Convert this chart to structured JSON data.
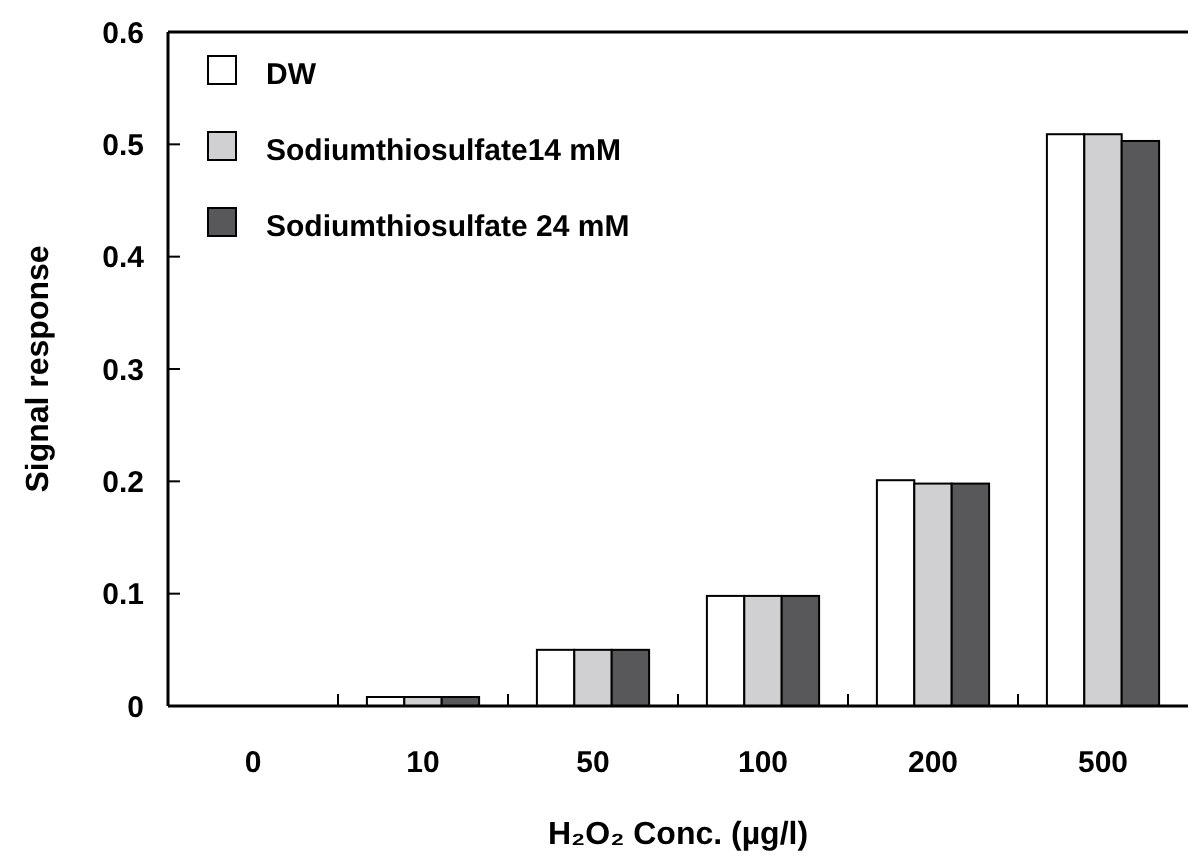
{
  "chart_data": {
    "type": "bar",
    "xlabel": "H₂O₂ Conc. (µg/l)",
    "ylabel": "Signal response",
    "categories": [
      "0",
      "10",
      "50",
      "100",
      "200",
      "500"
    ],
    "series": [
      {
        "name": "DW",
        "color": "#ffffff",
        "values": [
          0,
          0.008,
          0.05,
          0.098,
          0.201,
          0.509
        ]
      },
      {
        "name": "Sodiumthiosulfate14 mM",
        "color": "#d0d0d2",
        "values": [
          0,
          0.008,
          0.05,
          0.098,
          0.198,
          0.509
        ]
      },
      {
        "name": "Sodiumthiosulfate 24 mM",
        "color": "#58585a",
        "values": [
          0,
          0.008,
          0.05,
          0.098,
          0.198,
          0.503
        ]
      }
    ],
    "ylim": [
      0,
      0.6
    ],
    "yticks": [
      0,
      0.1,
      0.2,
      0.3,
      0.4,
      0.5,
      0.6
    ],
    "legend": "top left",
    "grid": false
  }
}
